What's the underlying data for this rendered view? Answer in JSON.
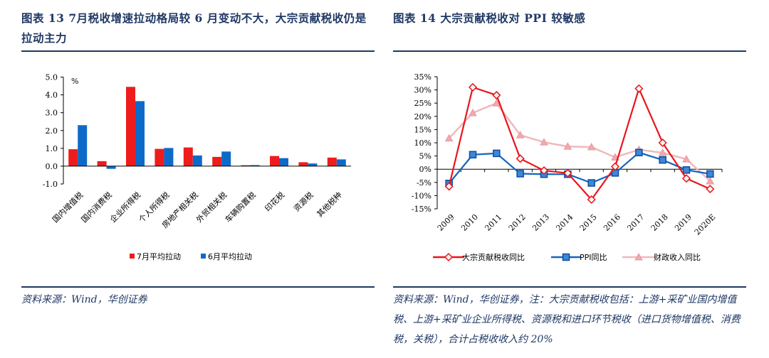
{
  "figures": [
    {
      "title": "图表 13   7月税收增速拉动格局较 6 月变动不大，大宗贡献税收仍是拉动主力",
      "source": "资料来源：Wind，华创证券",
      "unit_label": "%"
    },
    {
      "title": "图表 14   大宗贡献税收对 PPI 较敏感",
      "source": "资料来源：Wind，华创证券，注：大宗贡献税收包括：上游+采矿业国内增值税、上游+采矿业企业所得税、资源税和进口环节税收（进口货物增值税、消费税，关税），合计占税收收入约 20%"
    }
  ],
  "chart_data": [
    {
      "type": "bar",
      "categories": [
        "国内增值税",
        "国内消费税",
        "企业所得税",
        "个人所得税",
        "房地产相关税",
        "外贸相关税",
        "车辆购置税",
        "印花税",
        "资源税",
        "其他税种"
      ],
      "series": [
        {
          "name": "7月平均拉动",
          "color": "#ee1c1c",
          "values": [
            0.95,
            0.28,
            4.45,
            0.97,
            1.05,
            0.52,
            0.05,
            0.57,
            0.22,
            0.48
          ]
        },
        {
          "name": "6月平均拉动",
          "color": "#0e6ac9",
          "values": [
            2.3,
            -0.15,
            3.65,
            1.02,
            0.6,
            0.82,
            0.06,
            0.45,
            0.15,
            0.38
          ]
        }
      ],
      "ylim": [
        -1.0,
        5.0
      ],
      "yticks": [
        "-1.0",
        "0.0",
        "1.0",
        "2.0",
        "3.0",
        "4.0",
        "5.0"
      ],
      "ylabel": "%",
      "legend_position": "bottom"
    },
    {
      "type": "line",
      "x": [
        "2009",
        "2010",
        "2011",
        "2012",
        "2013",
        "2014",
        "2015",
        "2016",
        "2017",
        "2018",
        "2019",
        "2020E"
      ],
      "series": [
        {
          "name": "大宗贡献税收同比",
          "color": "#e8161b",
          "marker": "diamond",
          "values": [
            -6.5,
            31,
            28,
            4,
            -0.5,
            -1.5,
            -11.5,
            1,
            30.5,
            10,
            -3.5,
            -7.5
          ]
        },
        {
          "name": "PPI同比",
          "color": "#1565c0",
          "marker": "square",
          "values": [
            -5.4,
            5.5,
            6.0,
            -1.7,
            -1.9,
            -1.9,
            -5.2,
            -1.4,
            6.3,
            3.5,
            -0.3,
            -1.8
          ]
        },
        {
          "name": "财政收入同比",
          "color": "#f0b8bc",
          "marker": "triangle",
          "values": [
            11.7,
            21.3,
            25.0,
            12.9,
            10.2,
            8.6,
            8.4,
            4.5,
            7.4,
            6.2,
            3.8,
            -4.5
          ]
        }
      ],
      "ylim": [
        -15,
        35
      ],
      "yticks": [
        "-15%",
        "-10%",
        "-5%",
        "0%",
        "5%",
        "10%",
        "15%",
        "20%",
        "25%",
        "30%",
        "35%"
      ],
      "legend_position": "bottom"
    }
  ]
}
